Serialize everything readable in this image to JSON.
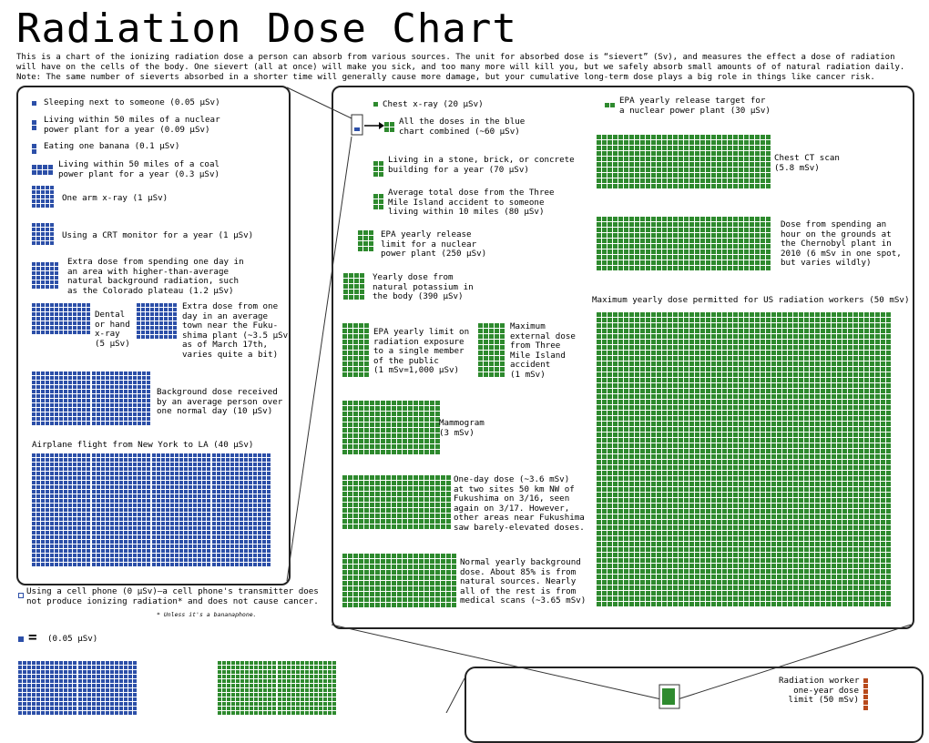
{
  "title": "Radiation Dose Chart",
  "intro": [
    "This is a chart of the ionizing radiation dose a person can absorb from various sources. The unit for absorbed dose is “sievert” (Sv), and measures the effect a dose of radiation",
    "will have on the cells of the body. One sievert (all at once) will make you sick, and too many more will kill you, but we safely absorb small amounts of of natural radiation daily.",
    "Note: The same number of sieverts absorbed in a shorter time will generally cause more damage, but your cumulative long-term dose plays a big role in things like cancer risk."
  ],
  "colors": {
    "blue": "#2c4fa8",
    "green": "#2e8a2e",
    "red": "#b84a1c",
    "outline": "#333333"
  },
  "blue_items": [
    {
      "id": "sleeping",
      "text": "Sleeping next to someone (0.05 µSv)"
    },
    {
      "id": "nuclear50",
      "text": "Living within 50 miles of a nuclear\npower plant for a year (0.09 µSv)"
    },
    {
      "id": "banana",
      "text": "Eating one banana (0.1 µSv)"
    },
    {
      "id": "coal50",
      "text": "Living within 50 miles of a coal\npower plant for a year (0.3 µSv)"
    },
    {
      "id": "arm",
      "text": "One arm x-ray (1 µSv)"
    },
    {
      "id": "crt",
      "text": "Using a CRT monitor for a year (1 µSv)"
    },
    {
      "id": "colorado",
      "text": "Extra dose from spending one day in\nan area with higher-than-average\nnatural background radiation, such\nas the Colorado plateau (1.2 µSv)"
    },
    {
      "id": "dental",
      "text": "Dental\nor hand\nx-ray\n(5 µSv)"
    },
    {
      "id": "fukuday",
      "text": "Extra dose from one\nday in an average\ntown near the Fuku-\nshima plant (~3.5 µSv\nas of March 17th,\nvaries quite a bit)"
    },
    {
      "id": "background",
      "text": "Background dose received\nby an average person over\none normal day (10 µSv)"
    },
    {
      "id": "flight",
      "text": "Airplane flight from New York to LA (40 µSv)"
    }
  ],
  "cellphone": {
    "text": "Using a cell phone (0 µSv)—a cell phone's transmitter does\nnot produce ionizing radiation* and does not cause cancer.",
    "footnote": "* Unless it's a bananaphone."
  },
  "green_items": [
    {
      "id": "chestxray",
      "text": "Chest x-ray (20 µSv)"
    },
    {
      "id": "bluecombined",
      "text": "All the doses in the blue\nchart combined (~60 µSv)"
    },
    {
      "id": "stone",
      "text": "Living in a stone, brick, or concrete\nbuilding for a year (70 µSv)"
    },
    {
      "id": "tmi10",
      "text": "Average total dose from the Three\nMile Island accident to someone\nliving within 10 miles (80 µSv)"
    },
    {
      "id": "epa250",
      "text": "EPA yearly release\nlimit for a nuclear\npower plant (250 µSv)"
    },
    {
      "id": "potassium",
      "text": "Yearly dose from\nnatural potassium in\nthe body (390 µSv)"
    },
    {
      "id": "epapublic",
      "text": "EPA yearly limit on\nradiation exposure\nto a single member\nof the public\n(1 mSv=1,000 µSv)"
    },
    {
      "id": "tmimax",
      "text": "Maximum\nexternal dose\nfrom Three\nMile Island\naccident\n(1 mSv)"
    },
    {
      "id": "mammogram",
      "text": "Mammogram\n(3 mSv)"
    },
    {
      "id": "fuku50km",
      "text": "One-day dose (~3.6 mSv)\nat two sites 50 km NW of\nFukushima on 3/16, seen\nagain on 3/17. However,\nother areas near Fukushima\nsaw barely-elevated doses."
    },
    {
      "id": "yearlybg",
      "text": "Normal yearly background\ndose. About 85% is from\nnatural sources. Nearly\nall of the rest is from\nmedical scans (~3.65 mSv)"
    },
    {
      "id": "epatarget",
      "text": "EPA yearly release target for\na nuclear power plant (30 µSv)"
    },
    {
      "id": "chestct",
      "text": "Chest CT scan\n(5.8 mSv)"
    },
    {
      "id": "chernobyl",
      "text": "Dose from spending an\nhour on the grounds at\nthe Chernobyl plant in\n2010 (6 mSv in one spot,\nbut varies wildly)"
    },
    {
      "id": "workers",
      "text": "Maximum yearly dose permitted for US radiation workers (50 mSv)"
    }
  ],
  "scale_legend": {
    "text": "(0.05 µSv)"
  },
  "red_items": [
    {
      "id": "redworker",
      "text": "Radiation worker\none-year dose\nlimit (50 mSv)"
    }
  ],
  "chart_data": {
    "type": "table",
    "title": "Radiation Dose Chart",
    "unit": "µSv",
    "series": [
      {
        "name": "blue chart",
        "points": [
          {
            "label": "Sleeping next to someone",
            "value": 0.05
          },
          {
            "label": "Living within 50 miles of a nuclear power plant for a year",
            "value": 0.09
          },
          {
            "label": "Eating one banana",
            "value": 0.1
          },
          {
            "label": "Living within 50 miles of a coal power plant for a year",
            "value": 0.3
          },
          {
            "label": "One arm x-ray",
            "value": 1
          },
          {
            "label": "Using a CRT monitor for a year",
            "value": 1
          },
          {
            "label": "Extra dose from spending one day in an area with higher-than-average natural background radiation",
            "value": 1.2
          },
          {
            "label": "Dental or hand x-ray",
            "value": 5
          },
          {
            "label": "Extra dose from one day in an average town near the Fukushima plant",
            "value": 3.5
          },
          {
            "label": "Background dose received by an average person over one normal day",
            "value": 10
          },
          {
            "label": "Airplane flight from New York to LA",
            "value": 40
          },
          {
            "label": "Using a cell phone",
            "value": 0
          }
        ]
      },
      {
        "name": "green chart",
        "points": [
          {
            "label": "Chest x-ray",
            "value": 20
          },
          {
            "label": "EPA yearly release target for a nuclear power plant",
            "value": 30
          },
          {
            "label": "All the doses in the blue chart combined",
            "value": 60
          },
          {
            "label": "Living in a stone, brick, or concrete building for a year",
            "value": 70
          },
          {
            "label": "Average total dose from the Three Mile Island accident to someone living within 10 miles",
            "value": 80
          },
          {
            "label": "EPA yearly release limit for a nuclear power plant",
            "value": 250
          },
          {
            "label": "Yearly dose from natural potassium in the body",
            "value": 390
          },
          {
            "label": "EPA yearly limit on radiation exposure to a single member of the public",
            "value": 1000
          },
          {
            "label": "Maximum external dose from Three Mile Island accident",
            "value": 1000
          },
          {
            "label": "Mammogram",
            "value": 3000
          },
          {
            "label": "One-day dose at two sites 50 km NW of Fukushima",
            "value": 3600
          },
          {
            "label": "Normal yearly background dose",
            "value": 3650
          },
          {
            "label": "Chest CT scan",
            "value": 5800
          },
          {
            "label": "Dose from spending an hour on the grounds at the Chernobyl plant in 2010",
            "value": 6000
          },
          {
            "label": "Maximum yearly dose permitted for US radiation workers",
            "value": 50000
          }
        ]
      },
      {
        "name": "red chart",
        "points": [
          {
            "label": "Radiation worker one-year dose limit",
            "value": 50000
          }
        ]
      }
    ]
  }
}
